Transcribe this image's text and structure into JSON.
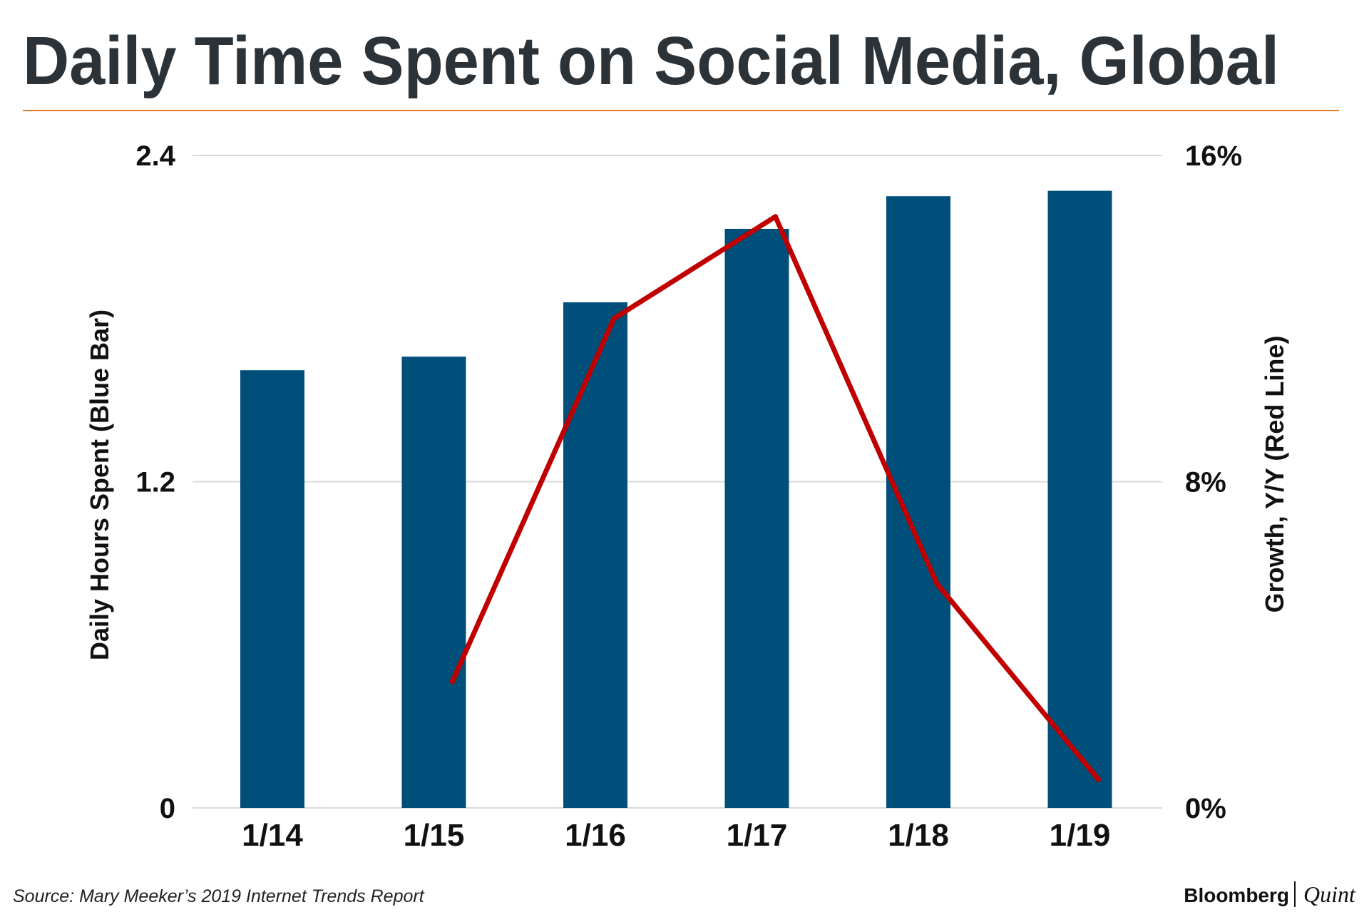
{
  "chart_data": {
    "type": "bar",
    "title": "Daily Time Spent on Social Media, Global",
    "categories": [
      "1/14",
      "1/15",
      "1/16",
      "1/17",
      "1/18",
      "1/19"
    ],
    "series": [
      {
        "name": "Daily Hours Spent (Blue Bar)",
        "type": "bar",
        "axis": "left",
        "color": "#004f7a",
        "values": [
          1.61,
          1.66,
          1.86,
          2.13,
          2.25,
          2.27
        ]
      },
      {
        "name": "Growth, Y/Y (Red Line)",
        "type": "line",
        "axis": "right",
        "color": "#c00000",
        "values": [
          null,
          3.1,
          12.0,
          14.5,
          5.5,
          0.7
        ]
      }
    ],
    "ylabel": "Daily Hours Spent (Blue Bar)",
    "ylabel_right": "Growth, Y/Y (Red Line)",
    "ylim": [
      0,
      2.4
    ],
    "ylim_right": [
      0,
      16
    ],
    "yticks": [
      {
        "value": 0,
        "label": "0"
      },
      {
        "value": 1.2,
        "label": "1.2"
      },
      {
        "value": 2.4,
        "label": "2.4"
      }
    ],
    "yticks_right": [
      {
        "value": 0,
        "label": "0%"
      },
      {
        "value": 8,
        "label": "8%"
      },
      {
        "value": 16,
        "label": "16%"
      }
    ],
    "grid": true,
    "colors": {
      "title": "#2b3238",
      "title_rule": "#e07b2a",
      "grid": "#d9d9d9",
      "bar": "#004f7a",
      "line": "#c00000"
    }
  },
  "footer": {
    "source": "Source: Mary Meeker’s 2019 Internet Trends Report",
    "brand_left": "Bloomberg",
    "brand_right": "Quint"
  }
}
